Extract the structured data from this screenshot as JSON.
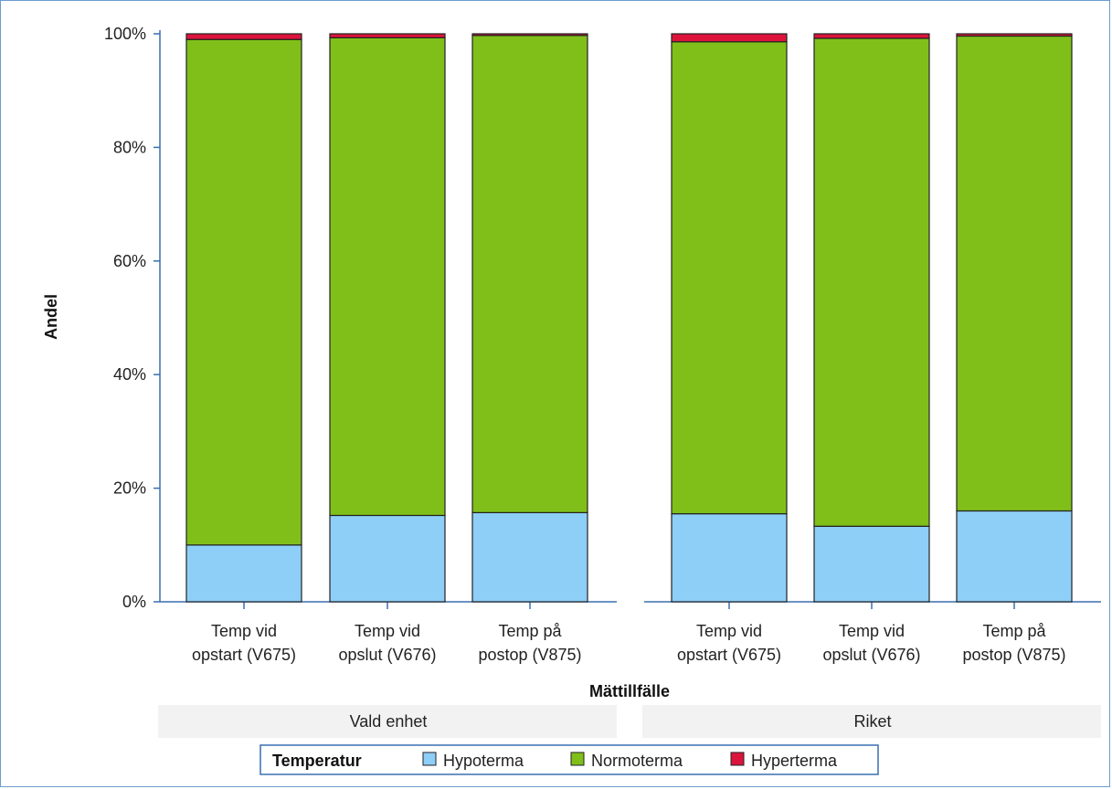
{
  "chart_data": {
    "type": "bar",
    "stacked": true,
    "ylabel": "Andel",
    "xlabel": "Mättillfälle",
    "yticks": [
      "0%",
      "20%",
      "40%",
      "60%",
      "80%",
      "100%"
    ],
    "ylim": [
      0,
      100
    ],
    "legend": {
      "title": "Temperatur",
      "placement": "bottom",
      "items": [
        {
          "name": "Hypoterma",
          "color": "#8ecff8"
        },
        {
          "name": "Normoterma",
          "color": "#80bf1a"
        },
        {
          "name": "Hyperterma",
          "color": "#dc143c"
        }
      ]
    },
    "panels": [
      {
        "name": "Vald enhet",
        "categories": [
          [
            "Temp vid",
            "opstart (V675)"
          ],
          [
            "Temp vid",
            "opslut (V676)"
          ],
          [
            "Temp på",
            "postop (V875)"
          ]
        ],
        "series": [
          {
            "name": "Hypoterma",
            "values": [
              10.0,
              15.2,
              15.7
            ]
          },
          {
            "name": "Normoterma",
            "values": [
              89.0,
              84.1,
              84.0
            ]
          },
          {
            "name": "Hyperterma",
            "values": [
              1.0,
              0.7,
              0.3
            ]
          }
        ]
      },
      {
        "name": "Riket",
        "categories": [
          [
            "Temp vid",
            "opstart (V675)"
          ],
          [
            "Temp vid",
            "opslut (V676)"
          ],
          [
            "Temp på",
            "postop (V875)"
          ]
        ],
        "series": [
          {
            "name": "Hypoterma",
            "values": [
              15.5,
              13.3,
              16.0
            ]
          },
          {
            "name": "Normoterma",
            "values": [
              83.1,
              85.9,
              83.6
            ]
          },
          {
            "name": "Hyperterma",
            "values": [
              1.4,
              0.8,
              0.4
            ]
          }
        ]
      }
    ]
  }
}
